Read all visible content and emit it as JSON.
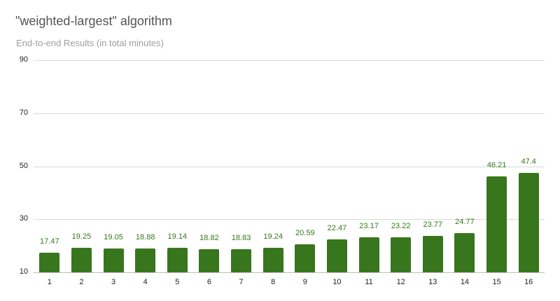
{
  "chart_data": {
    "type": "bar",
    "title": "\"weighted-largest\" algorithm",
    "subtitle": "End-to-end Results (in total minutes)",
    "xlabel": "",
    "ylabel": "",
    "ylim": [
      10,
      90
    ],
    "yticks": [
      90,
      70,
      50,
      30,
      10
    ],
    "grid": true,
    "legend": "none",
    "bar_color": "#38761d",
    "categories": [
      "1",
      "2",
      "3",
      "4",
      "5",
      "6",
      "7",
      "8",
      "9",
      "10",
      "11",
      "12",
      "13",
      "14",
      "15",
      "16"
    ],
    "values": [
      17.47,
      19.25,
      19.05,
      18.88,
      19.14,
      18.82,
      18.83,
      19.24,
      20.59,
      22.47,
      23.17,
      23.22,
      23.77,
      24.77,
      46.21,
      47.4
    ],
    "value_labels": [
      "17.47",
      "19.25",
      "19.05",
      "18.88",
      "19.14",
      "18.82",
      "18.83",
      "19.24",
      "20.59",
      "22.47",
      "23.17",
      "23.22",
      "23.77",
      "24.77",
      "46.21",
      "47.4"
    ]
  }
}
